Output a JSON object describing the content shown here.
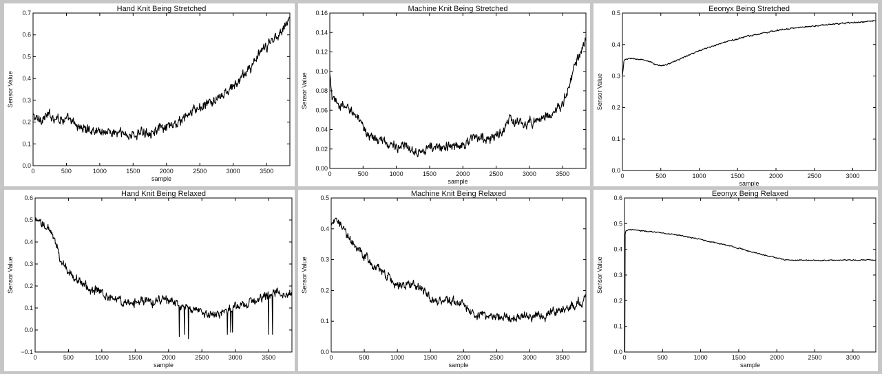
{
  "chart_data": [
    {
      "type": "line",
      "title": "Hand Knit Being Stretched",
      "xlabel": "sample",
      "ylabel": "Sensor Value",
      "xlim": [
        0,
        3850
      ],
      "ylim": [
        0.0,
        0.7
      ],
      "xticks": [
        "0",
        "500",
        "1000",
        "1500",
        "2000",
        "2500",
        "3000",
        "3500"
      ],
      "yticks": [
        "0.0",
        "0.1",
        "0.2",
        "0.3",
        "0.4",
        "0.5",
        "0.6",
        "0.7"
      ],
      "noise": 0.016,
      "series": [
        {
          "color": "#000000",
          "x": [
            0,
            60,
            250,
            500,
            750,
            1000,
            1250,
            1500,
            1750,
            2000,
            2200,
            2400,
            2600,
            2800,
            3000,
            3200,
            3400,
            3600,
            3800,
            3850
          ],
          "y": [
            0.23,
            0.21,
            0.23,
            0.21,
            0.17,
            0.16,
            0.15,
            0.14,
            0.16,
            0.17,
            0.2,
            0.25,
            0.28,
            0.31,
            0.36,
            0.43,
            0.51,
            0.58,
            0.65,
            0.68
          ]
        }
      ]
    },
    {
      "type": "line",
      "title": "Machine Knit Being Stretched",
      "xlabel": "sample",
      "ylabel": "Sensor Value",
      "xlim": [
        0,
        3850
      ],
      "ylim": [
        0.0,
        0.16
      ],
      "xticks": [
        "0",
        "500",
        "1000",
        "1500",
        "2000",
        "2500",
        "3000",
        "3500"
      ],
      "yticks": [
        "0.00",
        "0.02",
        "0.04",
        "0.06",
        "0.08",
        "0.10",
        "0.12",
        "0.14",
        "0.16"
      ],
      "noise": 0.0035,
      "series": [
        {
          "color": "#000000",
          "x": [
            0,
            40,
            200,
            350,
            500,
            700,
            900,
            1100,
            1300,
            1500,
            1800,
            2000,
            2200,
            2400,
            2600,
            2700,
            2900,
            3100,
            3300,
            3500,
            3600,
            3700,
            3850
          ],
          "y": [
            0.095,
            0.07,
            0.063,
            0.06,
            0.04,
            0.03,
            0.025,
            0.022,
            0.019,
            0.021,
            0.022,
            0.025,
            0.032,
            0.03,
            0.038,
            0.05,
            0.045,
            0.05,
            0.055,
            0.065,
            0.085,
            0.11,
            0.13
          ]
        }
      ]
    },
    {
      "type": "line",
      "title": "Eeonyx Being Stretched",
      "xlabel": "sample",
      "ylabel": "Sensor Value",
      "xlim": [
        0,
        3300
      ],
      "ylim": [
        0.0,
        0.5
      ],
      "xticks": [
        "0",
        "500",
        "1000",
        "1500",
        "2000",
        "2500",
        "3000"
      ],
      "yticks": [
        "0.0",
        "0.1",
        "0.2",
        "0.3",
        "0.4",
        "0.5"
      ],
      "noise": 0.0015,
      "series": [
        {
          "color": "#000000",
          "x": [
            0,
            20,
            100,
            250,
            350,
            450,
            500,
            600,
            800,
            1000,
            1300,
            1600,
            2000,
            2400,
            2800,
            3300
          ],
          "y": [
            0.3,
            0.35,
            0.356,
            0.352,
            0.345,
            0.335,
            0.333,
            0.338,
            0.36,
            0.38,
            0.405,
            0.425,
            0.445,
            0.457,
            0.466,
            0.475
          ]
        }
      ]
    },
    {
      "type": "line",
      "title": "Hand Knit Being Relaxed",
      "xlabel": "sample",
      "ylabel": "Sensor Value",
      "xlim": [
        0,
        3850
      ],
      "ylim": [
        -0.1,
        0.6
      ],
      "xticks": [
        "0",
        "500",
        "1000",
        "1500",
        "2000",
        "2500",
        "3000",
        "3500"
      ],
      "yticks": [
        "−0.1",
        "0.0",
        "0.1",
        "0.2",
        "0.3",
        "0.4",
        "0.5",
        "0.6"
      ],
      "noise": 0.014,
      "series": [
        {
          "color": "#000000",
          "x": [
            0,
            100,
            200,
            300,
            400,
            600,
            800,
            1000,
            1200,
            1400,
            1600,
            1800,
            2000,
            2200,
            2400,
            2600,
            2800,
            3000,
            3200,
            3400,
            3600,
            3850
          ],
          "y": [
            0.49,
            0.48,
            0.46,
            0.4,
            0.3,
            0.24,
            0.19,
            0.17,
            0.14,
            0.12,
            0.13,
            0.13,
            0.14,
            0.1,
            0.09,
            0.07,
            0.08,
            0.1,
            0.12,
            0.15,
            0.17,
            0.16
          ]
        }
      ],
      "spikes": [
        [
          2160,
          -0.03
        ],
        [
          2240,
          -0.02
        ],
        [
          2300,
          -0.04
        ],
        [
          2880,
          -0.02
        ],
        [
          2930,
          -0.01
        ],
        [
          2960,
          -0.01
        ],
        [
          3500,
          -0.02
        ],
        [
          3560,
          -0.02
        ]
      ]
    },
    {
      "type": "line",
      "title": "Machine Knit Being Relaxed",
      "xlabel": "sample",
      "ylabel": "Sensor Value",
      "xlim": [
        0,
        3850
      ],
      "ylim": [
        0.0,
        0.5
      ],
      "xticks": [
        "0",
        "500",
        "1000",
        "1500",
        "2000",
        "2500",
        "3000",
        "3500"
      ],
      "yticks": [
        "0.0",
        "0.1",
        "0.2",
        "0.3",
        "0.4",
        "0.5"
      ],
      "noise": 0.01,
      "series": [
        {
          "color": "#000000",
          "x": [
            0,
            150,
            250,
            400,
            600,
            800,
            1000,
            1200,
            1400,
            1600,
            1800,
            2000,
            2200,
            2400,
            2600,
            2800,
            3000,
            3200,
            3400,
            3600,
            3850
          ],
          "y": [
            0.42,
            0.42,
            0.38,
            0.33,
            0.29,
            0.25,
            0.22,
            0.22,
            0.2,
            0.16,
            0.17,
            0.15,
            0.12,
            0.12,
            0.11,
            0.12,
            0.11,
            0.12,
            0.13,
            0.15,
            0.17
          ]
        }
      ]
    },
    {
      "type": "line",
      "title": "Eeonyx Being Relaxed",
      "xlabel": "sample",
      "ylabel": "Sensor Value",
      "xlim": [
        0,
        3300
      ],
      "ylim": [
        0.0,
        0.6
      ],
      "xticks": [
        "0",
        "500",
        "1000",
        "1500",
        "2000",
        "2500",
        "3000"
      ],
      "yticks": [
        "0.0",
        "0.1",
        "0.2",
        "0.3",
        "0.4",
        "0.5",
        "0.6"
      ],
      "noise": 0.0015,
      "series": [
        {
          "color": "#000000",
          "x": [
            0,
            15,
            40,
            100,
            300,
            600,
            900,
            1200,
            1500,
            1800,
            2100,
            2200,
            2400,
            2800,
            3300
          ],
          "y": [
            0.44,
            0.47,
            0.475,
            0.476,
            0.47,
            0.46,
            0.445,
            0.425,
            0.405,
            0.38,
            0.36,
            0.358,
            0.357,
            0.358,
            0.358
          ]
        }
      ],
      "spikes": [
        [
          3,
          0.56
        ],
        [
          5,
          0.0
        ]
      ]
    }
  ]
}
